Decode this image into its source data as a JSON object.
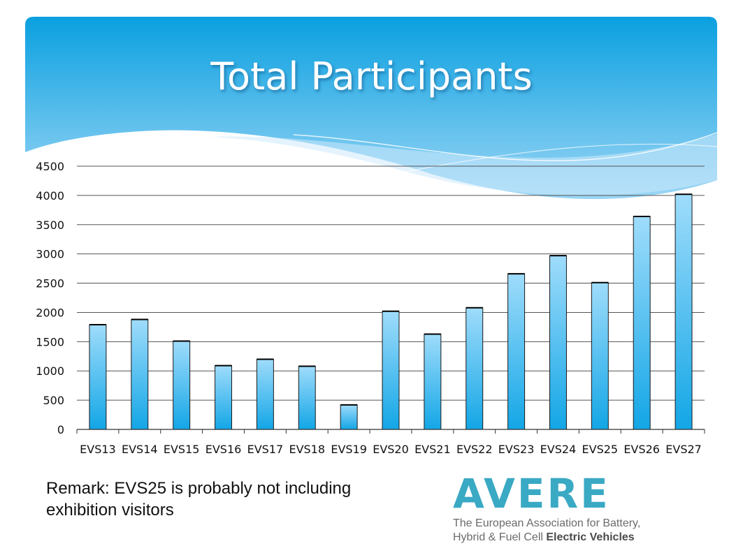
{
  "slide": {
    "title": "Total Participants",
    "remark": "Remark: EVS25 is probably not including exhibition visitors"
  },
  "logo": {
    "word": "AVERE",
    "line1": "The European Association for Battery,",
    "line2_regular": "Hybrid & Fuel Cell ",
    "line2_bold": "Electric Vehicles",
    "color": "#3aa9c4"
  },
  "colors": {
    "banner_top": "#0aa0e0",
    "banner_bottom": "#9bd6f5",
    "bar_top": "#9fdcfb",
    "bar_bottom": "#13a6e6",
    "bar_outline": "#1a1a1a",
    "gridline": "#555555"
  },
  "chart_data": {
    "type": "bar",
    "title": "Total Participants",
    "categories": [
      "EVS13",
      "EVS14",
      "EVS15",
      "EVS16",
      "EVS17",
      "EVS18",
      "EVS19",
      "EVS20",
      "EVS21",
      "EVS22",
      "EVS23",
      "EVS24",
      "EVS25",
      "EVS26",
      "EVS27"
    ],
    "values": [
      1790,
      1880,
      1510,
      1090,
      1200,
      1080,
      420,
      2020,
      1630,
      2080,
      2660,
      2970,
      2510,
      3640,
      4020
    ],
    "yticks": [
      0,
      500,
      1000,
      1500,
      2000,
      2500,
      3000,
      3500,
      4000,
      4500
    ],
    "ylim": [
      0,
      4500
    ],
    "xlabel": "",
    "ylabel": "",
    "grid": true,
    "legend": "none"
  }
}
